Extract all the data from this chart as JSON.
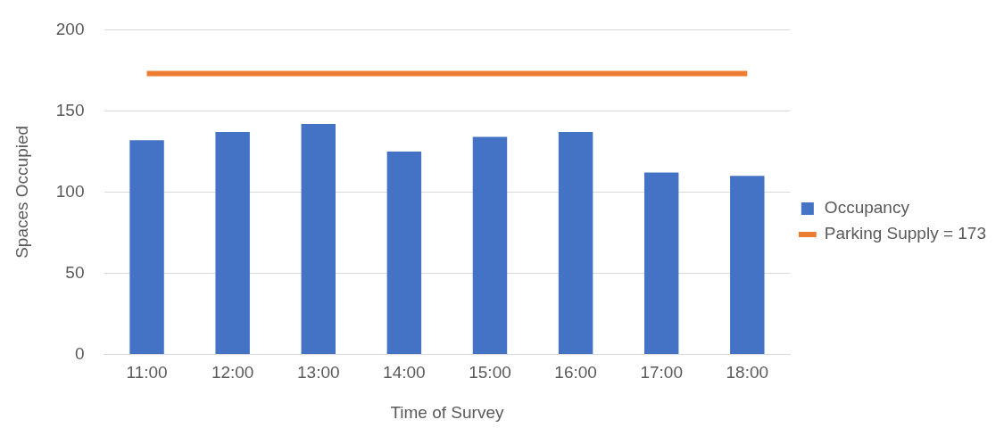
{
  "chart_data": {
    "type": "bar",
    "xlabel": "Time of Survey",
    "ylabel": "Spaces Occupied",
    "categories": [
      "11:00",
      "12:00",
      "13:00",
      "14:00",
      "15:00",
      "16:00",
      "17:00",
      "18:00"
    ],
    "series": [
      {
        "name": "Occupancy",
        "color": "#4472c4",
        "values": [
          132,
          137,
          142,
          125,
          134,
          137,
          112,
          110
        ]
      },
      {
        "name": "Parking Supply = 173",
        "type": "line",
        "color": "#ed7d31",
        "values": [
          173,
          173,
          173,
          173,
          173,
          173,
          173,
          173
        ]
      }
    ],
    "ylim": [
      0,
      200
    ],
    "yticks": [
      0,
      50,
      100,
      150,
      200
    ],
    "grid": "y",
    "legend": "right",
    "marker": "none"
  }
}
